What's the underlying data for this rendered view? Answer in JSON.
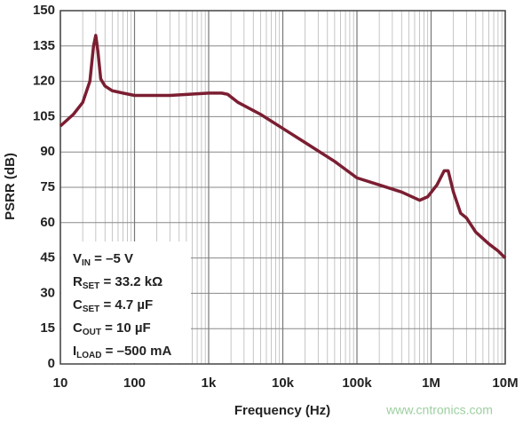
{
  "chart_data": {
    "type": "line",
    "xlabel": "Frequency (Hz)",
    "ylabel": "PSRR (dB)",
    "x": [
      10,
      15,
      20,
      25,
      28,
      30,
      32,
      35,
      40,
      50,
      70,
      100,
      300,
      1000,
      1500,
      1800,
      2500,
      5000,
      10000,
      20000,
      50000,
      100000,
      200000,
      400000,
      700000,
      900000,
      1200000,
      1500000,
      1700000,
      2000000,
      2500000,
      3000000,
      4000000,
      6000000,
      8000000,
      10000000
    ],
    "values": [
      101,
      106,
      111,
      120,
      135,
      139.5,
      133,
      121,
      118,
      116,
      115,
      114,
      114,
      115,
      115,
      114.5,
      111,
      106,
      100,
      94,
      86,
      79,
      76,
      73,
      69.5,
      71,
      76,
      82,
      82,
      73,
      64,
      62,
      56,
      51,
      48,
      45
    ],
    "color": "#7b1e32",
    "xscale": "log",
    "xlim": [
      10,
      10000000
    ],
    "xticks": [
      10,
      100,
      {
        "value": 1000,
        "label": "1k"
      },
      {
        "value": 10000,
        "label": "10k"
      },
      {
        "value": 100000,
        "label": "100k"
      },
      {
        "value": 1000000,
        "label": "1M"
      },
      {
        "value": 10000000,
        "label": "10M"
      }
    ],
    "ylim": [
      0,
      150
    ],
    "yticks": [
      0,
      15,
      30,
      45,
      60,
      75,
      90,
      105,
      120,
      135,
      150
    ],
    "grid": true,
    "annotations": [
      {
        "label": "V",
        "sub": "IN",
        "text": " = –5 V"
      },
      {
        "label": "R",
        "sub": "SET",
        "text": " = 33.2 kΩ"
      },
      {
        "label": "C",
        "sub": "SET",
        "text": " = 4.7 µF"
      },
      {
        "label": "C",
        "sub": "OUT",
        "text": " = 10 µF"
      },
      {
        "label": "I",
        "sub": "LOAD",
        "text": " = –500 mA"
      }
    ],
    "watermark": "www.cntronics.com"
  }
}
